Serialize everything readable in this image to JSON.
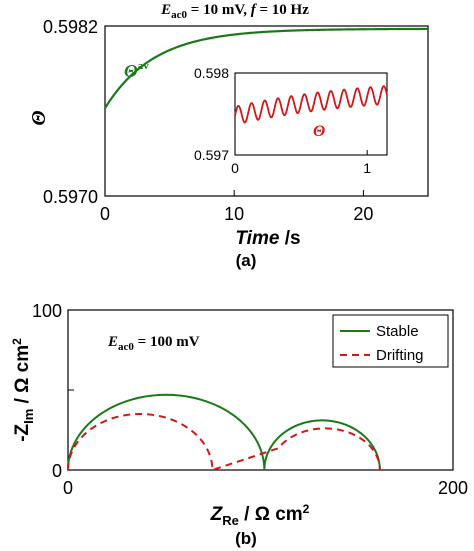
{
  "chart_data": [
    {
      "type": "line",
      "panel_label": "(a)",
      "title_parts": {
        "E": "E",
        "sub": "ac0",
        "rest1": " = 10 mV, ",
        "f": "f",
        "rest2": " = 10 Hz"
      },
      "ylabel": "Θ",
      "xlabel_parts": {
        "main": "Time",
        "unit": " /s"
      },
      "xlim": [
        0,
        25
      ],
      "ylim": [
        0.597,
        0.5982
      ],
      "xticks": [
        0,
        10,
        20
      ],
      "yticks": [
        0.597,
        0.5982
      ],
      "ytick_labels": [
        "0.5970",
        "0.5982"
      ],
      "series": [
        {
          "label_main": "Θ",
          "label_sup": "av",
          "color": "#1a7a1a",
          "model": {
            "start": 0.59762,
            "end": 0.59818,
            "tau": 3.8
          }
        }
      ],
      "inset": {
        "xlim": [
          0,
          1.15
        ],
        "ylim": [
          0.597,
          0.598
        ],
        "xticks": [
          0,
          1
        ],
        "yticks": [
          0.597,
          0.598
        ],
        "ytick_labels": [
          "0.597",
          "0.598"
        ],
        "series": {
          "label": "Θ",
          "color": "#d01818",
          "model": {
            "start": 0.59748,
            "end": 0.59785,
            "tau": 1.0,
            "amp": 0.00011,
            "freq": 10
          }
        }
      }
    },
    {
      "type": "line",
      "panel_label": "(b)",
      "annotation_parts": {
        "E": "E",
        "sub": "ac0",
        "rest": " = 100 mV"
      },
      "ylabel_parts": {
        "main": "-Z",
        "sub": "Im",
        "unit": " / Ω cm",
        "sup": "2"
      },
      "xlabel_parts": {
        "main": "Z",
        "sub": "Re",
        "unit": " / Ω cm",
        "sup": "2"
      },
      "xlim": [
        0,
        200
      ],
      "ylim": [
        0,
        100
      ],
      "xticks": [
        0,
        200
      ],
      "yticks": [
        0,
        50,
        100
      ],
      "ytick_labels": [
        "0",
        "",
        "100"
      ],
      "legend_position": "top-right",
      "series": [
        {
          "name": "Stable",
          "color": "#1a7a1a",
          "dash": "solid",
          "arcs": [
            {
              "x0": 0,
              "x1": 102,
              "peak": 47
            },
            {
              "x0": 102,
              "x1": 162,
              "peak": 31
            }
          ]
        },
        {
          "name": "Drifting",
          "color": "#d01818",
          "dash": "dashed",
          "arcs": [
            {
              "x0": 0,
              "x1": 75,
              "peak": 35
            },
            {
              "x0": 105,
              "x1": 162,
              "peak": 26
            }
          ],
          "bridge": {
            "x0": 75,
            "x1": 105
          }
        }
      ]
    }
  ]
}
